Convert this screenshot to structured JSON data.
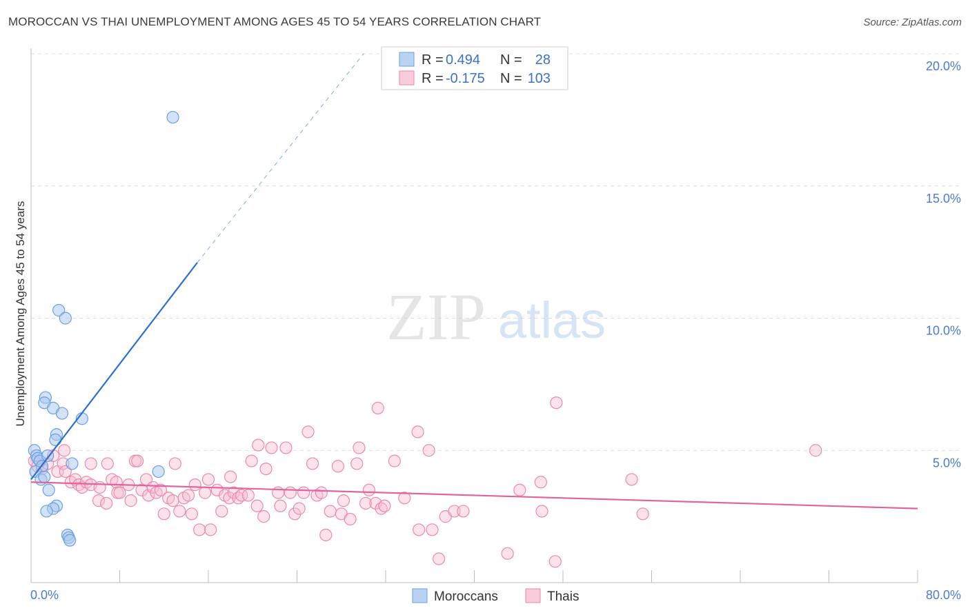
{
  "title": "MOROCCAN VS THAI UNEMPLOYMENT AMONG AGES 45 TO 54 YEARS CORRELATION CHART",
  "source": "Source: ZipAtlas.com",
  "watermark": {
    "zip": "ZIP",
    "atlas": "atlas"
  },
  "chart_data": {
    "type": "scatter",
    "ylabel": "Unemployment Among Ages 45 to 54 years",
    "xlim": [
      0,
      80
    ],
    "ylim": [
      0,
      20
    ],
    "x_tick_labels": [
      "0.0%",
      "80.0%"
    ],
    "y_ticks": [
      5,
      10,
      15,
      20
    ],
    "y_tick_labels": [
      "5.0%",
      "10.0%",
      "15.0%",
      "20.0%"
    ],
    "grid": true,
    "legend": {
      "placement": "top-center",
      "entries": [
        {
          "r_label": "R =",
          "r_value": "0.494",
          "n_label": "N =",
          "n_value": "28"
        },
        {
          "r_label": "R =",
          "r_value": "-0.175",
          "n_label": "N =",
          "n_value": "103"
        }
      ]
    },
    "colors": {
      "moroccans_fill": "#a8c8f0",
      "moroccans_stroke": "#6a9fe0",
      "moroccans_line": "#2b6fd0",
      "thais_fill": "#f6bfd2",
      "thais_stroke": "#e88aab",
      "thais_line": "#e0659a",
      "value_text": "#3a72c8"
    },
    "series": [
      {
        "name": "Moroccans",
        "trend": {
          "x": [
            0,
            15
          ],
          "y": [
            3.9,
            12.1
          ],
          "dashed_to": [
            30,
            20
          ]
        },
        "points": [
          [
            0.3,
            5.0
          ],
          [
            0.5,
            4.8
          ],
          [
            0.6,
            4.7
          ],
          [
            0.8,
            4.6
          ],
          [
            1.0,
            4.4
          ],
          [
            0.4,
            4.2
          ],
          [
            0.9,
            3.9
          ],
          [
            1.2,
            4.0
          ],
          [
            1.5,
            4.8
          ],
          [
            1.3,
            7.0
          ],
          [
            1.2,
            6.8
          ],
          [
            2.0,
            6.6
          ],
          [
            2.8,
            6.4
          ],
          [
            4.6,
            6.2
          ],
          [
            2.3,
            5.6
          ],
          [
            2.2,
            5.4
          ],
          [
            3.7,
            4.5
          ],
          [
            11.5,
            4.2
          ],
          [
            1.6,
            3.5
          ],
          [
            2.3,
            2.9
          ],
          [
            2.0,
            2.8
          ],
          [
            1.4,
            2.7
          ],
          [
            3.3,
            1.8
          ],
          [
            3.4,
            1.7
          ],
          [
            3.5,
            1.6
          ],
          [
            2.5,
            10.3
          ],
          [
            3.1,
            10.0
          ],
          [
            12.8,
            17.6
          ]
        ]
      },
      {
        "name": "Thais",
        "trend": {
          "x": [
            0,
            80
          ],
          "y": [
            3.8,
            2.8
          ]
        },
        "points": [
          [
            0.3,
            4.6
          ],
          [
            0.6,
            4.4
          ],
          [
            1.0,
            4.3
          ],
          [
            1.5,
            4.5
          ],
          [
            2.0,
            4.8
          ],
          [
            2.4,
            4.2
          ],
          [
            2.9,
            4.5
          ],
          [
            3.1,
            4.2
          ],
          [
            3.0,
            5.0
          ],
          [
            3.6,
            3.8
          ],
          [
            4.0,
            3.9
          ],
          [
            4.3,
            3.7
          ],
          [
            4.6,
            3.6
          ],
          [
            5.0,
            3.8
          ],
          [
            5.4,
            3.7
          ],
          [
            5.4,
            4.5
          ],
          [
            6.1,
            3.1
          ],
          [
            6.2,
            3.6
          ],
          [
            6.8,
            3.0
          ],
          [
            6.9,
            4.5
          ],
          [
            7.3,
            3.9
          ],
          [
            7.7,
            3.8
          ],
          [
            7.8,
            3.4
          ],
          [
            8.0,
            3.4
          ],
          [
            8.8,
            3.7
          ],
          [
            9.0,
            3.1
          ],
          [
            9.4,
            4.6
          ],
          [
            9.6,
            4.6
          ],
          [
            10.0,
            3.5
          ],
          [
            10.4,
            3.9
          ],
          [
            10.6,
            3.3
          ],
          [
            11.0,
            3.6
          ],
          [
            11.3,
            3.4
          ],
          [
            11.7,
            3.5
          ],
          [
            12.0,
            2.6
          ],
          [
            12.4,
            3.2
          ],
          [
            12.8,
            3.1
          ],
          [
            13.0,
            4.5
          ],
          [
            13.4,
            2.7
          ],
          [
            13.8,
            3.2
          ],
          [
            14.2,
            3.3
          ],
          [
            14.5,
            2.6
          ],
          [
            14.8,
            3.7
          ],
          [
            15.2,
            2.0
          ],
          [
            15.7,
            3.4
          ],
          [
            16.0,
            3.9
          ],
          [
            16.2,
            2.0
          ],
          [
            16.8,
            3.5
          ],
          [
            17.2,
            2.7
          ],
          [
            17.5,
            3.3
          ],
          [
            17.9,
            3.2
          ],
          [
            18.3,
            3.4
          ],
          [
            18.7,
            3.2
          ],
          [
            18.0,
            4.0
          ],
          [
            19.0,
            3.3
          ],
          [
            19.6,
            3.3
          ],
          [
            19.9,
            4.6
          ],
          [
            20.4,
            2.9
          ],
          [
            20.5,
            5.2
          ],
          [
            21.0,
            2.5
          ],
          [
            21.2,
            4.3
          ],
          [
            21.7,
            5.1
          ],
          [
            22.3,
            3.4
          ],
          [
            22.5,
            2.9
          ],
          [
            23.0,
            5.1
          ],
          [
            23.4,
            3.4
          ],
          [
            23.8,
            2.6
          ],
          [
            24.2,
            2.8
          ],
          [
            24.6,
            3.4
          ],
          [
            25.0,
            5.7
          ],
          [
            25.4,
            4.5
          ],
          [
            25.8,
            3.3
          ],
          [
            26.2,
            3.4
          ],
          [
            26.6,
            1.8
          ],
          [
            27.0,
            2.7
          ],
          [
            27.7,
            4.4
          ],
          [
            28.0,
            2.6
          ],
          [
            28.2,
            3.1
          ],
          [
            28.8,
            2.4
          ],
          [
            29.4,
            4.5
          ],
          [
            29.6,
            5.1
          ],
          [
            30.2,
            3.0
          ],
          [
            30.5,
            3.5
          ],
          [
            31.1,
            3.0
          ],
          [
            31.3,
            6.6
          ],
          [
            31.6,
            2.8
          ],
          [
            31.9,
            2.9
          ],
          [
            32.8,
            4.6
          ],
          [
            33.7,
            3.2
          ],
          [
            34.9,
            5.7
          ],
          [
            35.0,
            2.0
          ],
          [
            35.9,
            5.0
          ],
          [
            36.2,
            2.0
          ],
          [
            36.8,
            0.9
          ],
          [
            37.4,
            2.5
          ],
          [
            38.2,
            2.7
          ],
          [
            39.0,
            2.7
          ],
          [
            43.0,
            1.1
          ],
          [
            44.1,
            3.5
          ],
          [
            46.0,
            3.8
          ],
          [
            46.1,
            2.7
          ],
          [
            47.3,
            0.8
          ],
          [
            47.4,
            6.8
          ],
          [
            54.2,
            3.9
          ],
          [
            55.2,
            2.6
          ],
          [
            70.8,
            5.0
          ]
        ]
      }
    ]
  },
  "bottom_legend": [
    "Moroccans",
    "Thais"
  ]
}
